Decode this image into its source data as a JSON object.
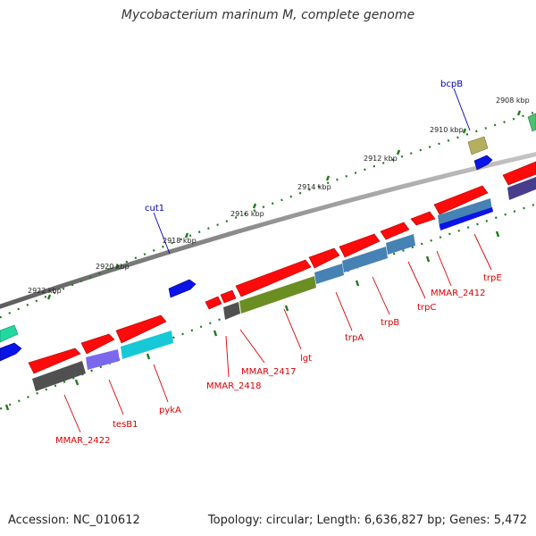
{
  "title": "Mycobacterium marinum M, complete genome",
  "footer": {
    "accession": "Accession: NC_010612",
    "topology": "Topology: circular; Length: 6,636,827 bp; Genes: 5,472"
  },
  "colors": {
    "backbone": "#8c8c8c",
    "tick": "#1e7a1e",
    "label_red": "#dd0000",
    "label_blue": "#0000bb"
  },
  "ticks": [
    {
      "label": "2908 kbp"
    },
    {
      "label": "2910 kbp"
    },
    {
      "label": "2912 kbp"
    },
    {
      "label": "2914 kbp"
    },
    {
      "label": "2916 kbp"
    },
    {
      "label": "2918 kbp"
    },
    {
      "label": "2920 kbp"
    },
    {
      "label": "2922 kbp"
    }
  ],
  "gene_labels": [
    {
      "name": "bcpB",
      "color": "#0000bb"
    },
    {
      "name": "cut1",
      "color": "#0000bb"
    },
    {
      "name": "trpE",
      "color": "#dd0000"
    },
    {
      "name": "MMAR_2412",
      "color": "#dd0000"
    },
    {
      "name": "trpC",
      "color": "#dd0000"
    },
    {
      "name": "trpB",
      "color": "#dd0000"
    },
    {
      "name": "trpA",
      "color": "#dd0000"
    },
    {
      "name": "lgt",
      "color": "#dd0000"
    },
    {
      "name": "MMAR_2417",
      "color": "#dd0000"
    },
    {
      "name": "MMAR_2418",
      "color": "#dd0000"
    },
    {
      "name": "pykA",
      "color": "#dd0000"
    },
    {
      "name": "tesB1",
      "color": "#dd0000"
    },
    {
      "name": "MMAR_2422",
      "color": "#dd0000"
    }
  ],
  "feature_colors": {
    "cds": "#ff0a0a",
    "blue": "#0a14e6",
    "steel": "#4682b4",
    "olive": "#6b8e23",
    "cyan": "#17c9d6",
    "purple": "#7b68ee",
    "dark": "#505050",
    "khaki": "#b5b060",
    "teal": "#22d8a0",
    "navy": "#483d8b"
  }
}
